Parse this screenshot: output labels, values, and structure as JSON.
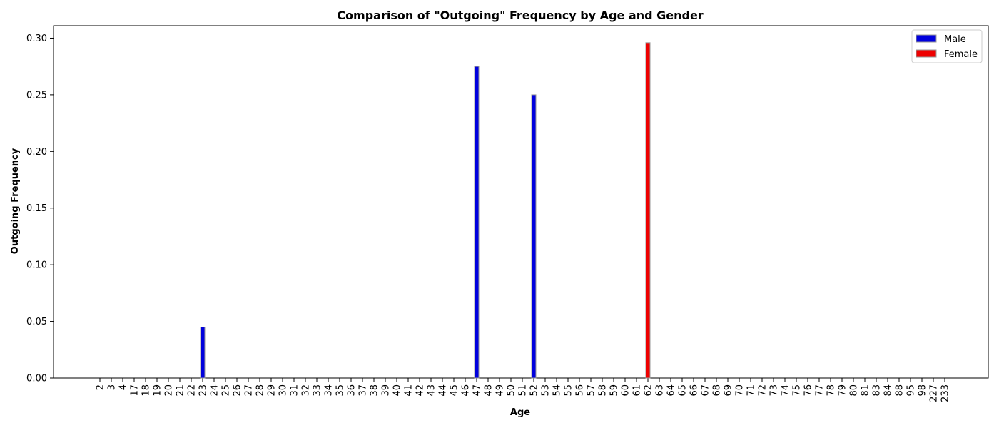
{
  "chart_data": {
    "type": "bar",
    "title": "Comparison of \"Outgoing\" Frequency by Age and Gender",
    "xlabel": "Age",
    "ylabel": "Outgoing Frequency",
    "categories": [
      "2",
      "3",
      "4",
      "17",
      "18",
      "19",
      "20",
      "21",
      "22",
      "23",
      "24",
      "25",
      "26",
      "27",
      "28",
      "29",
      "30",
      "31",
      "32",
      "33",
      "34",
      "35",
      "36",
      "37",
      "38",
      "39",
      "40",
      "41",
      "42",
      "43",
      "44",
      "45",
      "46",
      "47",
      "48",
      "49",
      "50",
      "51",
      "52",
      "53",
      "54",
      "55",
      "56",
      "57",
      "58",
      "59",
      "60",
      "61",
      "62",
      "63",
      "64",
      "65",
      "66",
      "67",
      "68",
      "69",
      "70",
      "71",
      "72",
      "73",
      "74",
      "75",
      "76",
      "77",
      "78",
      "79",
      "80",
      "81",
      "83",
      "84",
      "88",
      "95",
      "98",
      "227",
      "233"
    ],
    "series": [
      {
        "name": "Male",
        "color": "#0000dd",
        "values": [
          0,
          0,
          0,
          0,
          0,
          0,
          0,
          0,
          0,
          0.045,
          0,
          0,
          0,
          0,
          0,
          0,
          0,
          0,
          0,
          0,
          0,
          0,
          0,
          0,
          0,
          0,
          0,
          0,
          0,
          0,
          0,
          0,
          0,
          0.275,
          0,
          0,
          0,
          0,
          0.25,
          0,
          0,
          0,
          0,
          0,
          0,
          0,
          0,
          0,
          0,
          0,
          0,
          0,
          0,
          0,
          0,
          0,
          0,
          0,
          0,
          0,
          0,
          0,
          0,
          0,
          0,
          0,
          0,
          0,
          0,
          0,
          0,
          0,
          0,
          0,
          0
        ]
      },
      {
        "name": "Female",
        "color": "#ee0000",
        "values": [
          0,
          0,
          0,
          0,
          0,
          0,
          0,
          0,
          0,
          0,
          0,
          0,
          0,
          0,
          0,
          0,
          0,
          0,
          0,
          0,
          0,
          0,
          0,
          0,
          0,
          0,
          0,
          0,
          0,
          0,
          0,
          0,
          0,
          0,
          0,
          0,
          0,
          0,
          0,
          0,
          0,
          0,
          0,
          0,
          0,
          0,
          0,
          0,
          0.296,
          0,
          0,
          0,
          0,
          0,
          0,
          0,
          0,
          0,
          0,
          0,
          0,
          0,
          0,
          0,
          0,
          0,
          0,
          0,
          0,
          0,
          0,
          0,
          0,
          0,
          0
        ]
      }
    ],
    "yticks": [
      "0.00",
      "0.05",
      "0.10",
      "0.15",
      "0.20",
      "0.25",
      "0.30"
    ],
    "ylim": [
      0,
      0.311
    ],
    "legend_position": "top-right",
    "grid": false
  }
}
